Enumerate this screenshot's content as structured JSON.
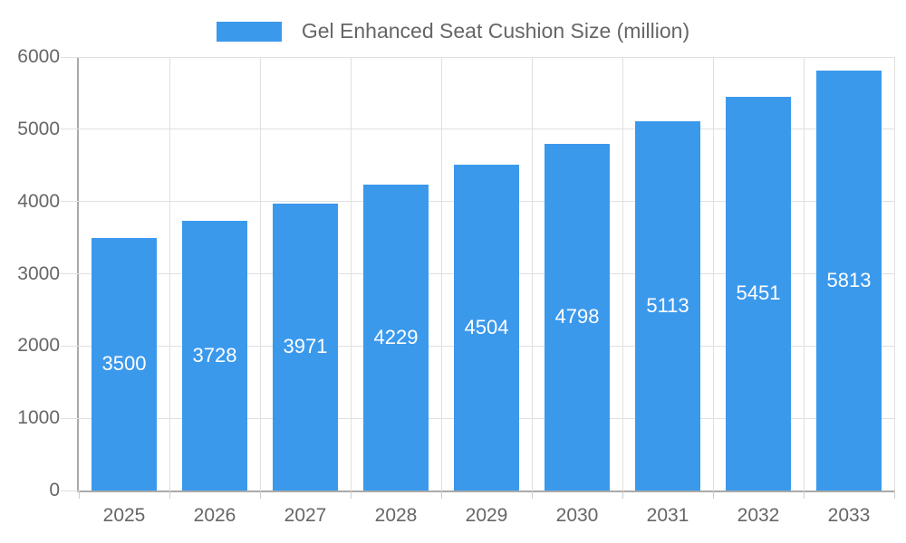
{
  "chart": {
    "legend_label": "Gel Enhanced Seat Cushion Size (million)"
  },
  "chart_data": {
    "type": "bar",
    "title": "Gel Enhanced Seat Cushion Size (million)",
    "categories": [
      "2025",
      "2026",
      "2027",
      "2028",
      "2029",
      "2030",
      "2031",
      "2032",
      "2033"
    ],
    "values": [
      3500,
      3728,
      3971,
      4229,
      4504,
      4798,
      5113,
      5451,
      5813
    ],
    "xlabel": "",
    "ylabel": "",
    "ylim": [
      0,
      6000
    ],
    "yticks": [
      0,
      1000,
      2000,
      3000,
      4000,
      5000,
      6000
    ],
    "grid": true,
    "legend_position": "top-center",
    "value_labels": "inside-middle",
    "colors": {
      "bar": "#3b99ec",
      "value_label": "#ffffff",
      "axis": "#a9a9a9",
      "grid": "#e0e0e0",
      "tick": "#cccccc",
      "text": "#666666",
      "background": "#ffffff"
    }
  }
}
